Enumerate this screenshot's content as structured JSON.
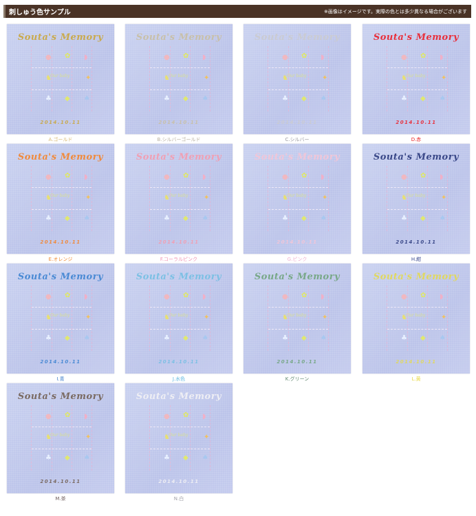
{
  "header": {
    "title": "刺しゅう色サンプル",
    "note": "※画像はイメージです。実際の色とは多少異なる場合がございます"
  },
  "sample": {
    "title": "Souta's Memory",
    "baby_text": "Our baby",
    "date": "2014.10.11"
  },
  "samples": [
    {
      "label": "A.ゴールド",
      "color": "#c9aa4e",
      "label_color": "#d8b870"
    },
    {
      "label": "B.シルバーゴールド",
      "color": "#c8c0aa",
      "label_color": "#b8b0a0"
    },
    {
      "label": "C.シルバー",
      "color": "#cacbd2",
      "label_color": "#9a9aa0"
    },
    {
      "label": "D.赤",
      "color": "#e8303c",
      "label_color": "#e82020"
    },
    {
      "label": "E.オレンジ",
      "color": "#f08a3c",
      "label_color": "#f08a30"
    },
    {
      "label": "F.コーラルピンク",
      "color": "#f0a0b4",
      "label_color": "#f090b0"
    },
    {
      "label": "G.ピンク",
      "color": "#f0c6d8",
      "label_color": "#f0b0d0"
    },
    {
      "label": "H.紺",
      "color": "#3a4888",
      "label_color": "#3a4a90"
    },
    {
      "label": "I.青",
      "color": "#4a8ad4",
      "label_color": "#3a7ac8"
    },
    {
      "label": "J.水色",
      "color": "#7cc0e4",
      "label_color": "#60b8e0"
    },
    {
      "label": "K.グリーン",
      "color": "#78a888",
      "label_color": "#608870"
    },
    {
      "label": "L.黄",
      "color": "#e0d860",
      "label_color": "#e8d840"
    },
    {
      "label": "M.茶",
      "color": "#7a6a62",
      "label_color": "#706060"
    },
    {
      "label": "N.白",
      "color": "#eeeef4",
      "label_color": "#a0a0a8"
    }
  ]
}
